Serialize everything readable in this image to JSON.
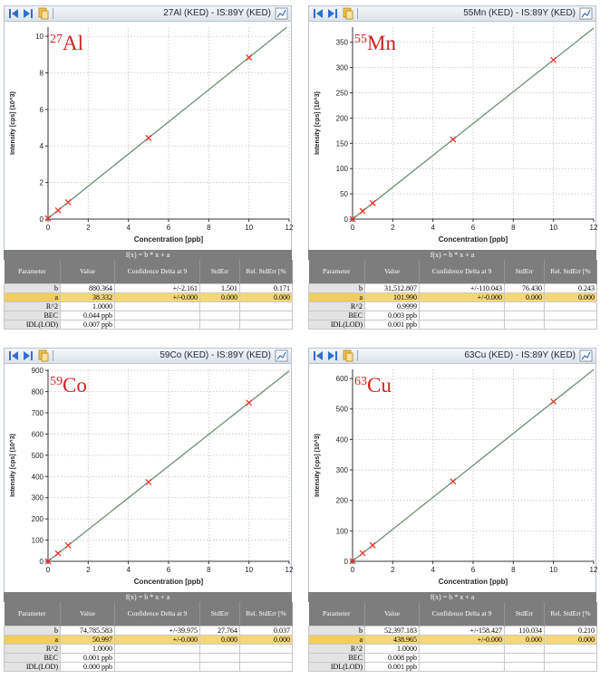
{
  "panels": [
    {
      "window_title": "27Al (KED) - IS:89Y (KED)",
      "isotope": {
        "mass": "27",
        "symbol": "Al"
      },
      "formula": "f(x) = b * x + a",
      "columns": [
        "Parameter",
        "Value",
        "Confidence Delta at 9",
        "StdErr",
        "Rel. StdErr [%"
      ],
      "rows": [
        {
          "param": "b",
          "value": "880.364",
          "conf": "+/-2.161",
          "stderr": "1.501",
          "rel": "0.171"
        },
        {
          "param": "a",
          "value": "38.332",
          "conf": "+/-0.000",
          "stderr": "0.000",
          "rel": "0.000"
        },
        {
          "param": "R^2",
          "value": "1.0000",
          "conf": "",
          "stderr": "",
          "rel": ""
        },
        {
          "param": "BEC",
          "value": "0.044 ppb",
          "conf": "",
          "stderr": "",
          "rel": ""
        },
        {
          "param": "IDL(LOD)",
          "value": "0.007 ppb",
          "conf": "",
          "stderr": "",
          "rel": ""
        }
      ],
      "chart_data": {
        "type": "scatter",
        "xlabel": "Concentration [ppb]",
        "ylabel": "Intensity [cps] (10^3)",
        "xlim": [
          0,
          12
        ],
        "ylim": [
          0,
          10.5
        ],
        "xticks": [
          0,
          2,
          4,
          6,
          8,
          10,
          12
        ],
        "yticks": [
          0,
          2,
          4,
          6,
          8,
          10
        ],
        "grid": true,
        "points": {
          "x": [
            0,
            0.5,
            1,
            5,
            10
          ],
          "y": [
            0.04,
            0.48,
            0.92,
            4.44,
            8.84
          ]
        },
        "fit": {
          "slope": 0.88,
          "intercept": 0.04
        }
      }
    },
    {
      "window_title": "55Mn (KED) - IS:89Y (KED)",
      "isotope": {
        "mass": "55",
        "symbol": "Mn"
      },
      "formula": "f(x) = b * x + a",
      "columns": [
        "Parameter",
        "Value",
        "Confidence Delta at 9",
        "StdErr",
        "Rel. StdErr [%"
      ],
      "rows": [
        {
          "param": "b",
          "value": "31,512.807",
          "conf": "+/-110.043",
          "stderr": "76.430",
          "rel": "0.243"
        },
        {
          "param": "a",
          "value": "101.990",
          "conf": "+/-0.000",
          "stderr": "0.000",
          "rel": "0.000"
        },
        {
          "param": "R^2",
          "value": "0.9999",
          "conf": "",
          "stderr": "",
          "rel": ""
        },
        {
          "param": "BEC",
          "value": "0.003 ppb",
          "conf": "",
          "stderr": "",
          "rel": ""
        },
        {
          "param": "IDL(LOD)",
          "value": "0.001 ppb",
          "conf": "",
          "stderr": "",
          "rel": ""
        }
      ],
      "chart_data": {
        "type": "scatter",
        "xlabel": "Concentration [ppb]",
        "ylabel": "Intensity [cps] (10^3)",
        "xlim": [
          0,
          12
        ],
        "ylim": [
          0,
          380
        ],
        "xticks": [
          0,
          2,
          4,
          6,
          8,
          10,
          12
        ],
        "yticks": [
          0,
          50,
          100,
          150,
          200,
          250,
          300,
          350
        ],
        "grid": true,
        "points": {
          "x": [
            0,
            0.5,
            1,
            5,
            10
          ],
          "y": [
            0.1,
            15.9,
            31.6,
            157.7,
            315.2
          ]
        },
        "fit": {
          "slope": 31.51,
          "intercept": 0.1
        }
      }
    },
    {
      "window_title": "59Co (KED) - IS:89Y (KED)",
      "isotope": {
        "mass": "59",
        "symbol": "Co"
      },
      "formula": "f(x) = b * x + a",
      "columns": [
        "Parameter",
        "Value",
        "Confidence Delta at 9",
        "StdErr",
        "Rel. StdErr [%"
      ],
      "rows": [
        {
          "param": "b",
          "value": "74,785.583",
          "conf": "+/-39.975",
          "stderr": "27.764",
          "rel": "0.037"
        },
        {
          "param": "a",
          "value": "50.997",
          "conf": "+/-0.000",
          "stderr": "0.000",
          "rel": "0.000"
        },
        {
          "param": "R^2",
          "value": "1.0000",
          "conf": "",
          "stderr": "",
          "rel": ""
        },
        {
          "param": "BEC",
          "value": "0.001 ppb",
          "conf": "",
          "stderr": "",
          "rel": ""
        },
        {
          "param": "IDL(LOD)",
          "value": "0.000 ppb",
          "conf": "",
          "stderr": "",
          "rel": ""
        }
      ],
      "chart_data": {
        "type": "scatter",
        "xlabel": "Concentration [ppb]",
        "ylabel": "Intensity [cps] (10^3)",
        "xlim": [
          0,
          12
        ],
        "ylim": [
          0,
          905
        ],
        "xticks": [
          0,
          2,
          4,
          6,
          8,
          10,
          12
        ],
        "yticks": [
          0,
          100,
          200,
          300,
          400,
          500,
          600,
          700,
          800,
          900
        ],
        "grid": true,
        "points": {
          "x": [
            0,
            0.5,
            1,
            5,
            10
          ],
          "y": [
            0.05,
            37.4,
            74.8,
            373.9,
            747.9
          ]
        },
        "fit": {
          "slope": 74.79,
          "intercept": 0.05
        }
      }
    },
    {
      "window_title": "63Cu (KED) - IS:89Y (KED)",
      "isotope": {
        "mass": "63",
        "symbol": "Cu"
      },
      "formula": "f(x) = b * x + a",
      "columns": [
        "Parameter",
        "Value",
        "Confidence Delta at 9",
        "StdErr",
        "Rel. StdErr [%"
      ],
      "rows": [
        {
          "param": "b",
          "value": "52,397.183",
          "conf": "+/-158.427",
          "stderr": "110.034",
          "rel": "0.210"
        },
        {
          "param": "a",
          "value": "438.965",
          "conf": "+/-0.000",
          "stderr": "0.000",
          "rel": "0.000"
        },
        {
          "param": "R^2",
          "value": "1.0000",
          "conf": "",
          "stderr": "",
          "rel": ""
        },
        {
          "param": "BEC",
          "value": "0.008 ppb",
          "conf": "",
          "stderr": "",
          "rel": ""
        },
        {
          "param": "IDL(LOD)",
          "value": "0.001 ppb",
          "conf": "",
          "stderr": "",
          "rel": ""
        }
      ],
      "chart_data": {
        "type": "scatter",
        "xlabel": "Concentration [ppb]",
        "ylabel": "Intensity [cps] (10^3)",
        "xlim": [
          0,
          12
        ],
        "ylim": [
          0,
          630
        ],
        "xticks": [
          0,
          2,
          4,
          6,
          8,
          10,
          12
        ],
        "yticks": [
          0,
          100,
          200,
          300,
          400,
          500,
          600
        ],
        "grid": true,
        "points": {
          "x": [
            0,
            0.5,
            1,
            5,
            10
          ],
          "y": [
            0.44,
            26.6,
            52.8,
            262.4,
            524.4
          ]
        },
        "fit": {
          "slope": 52.4,
          "intercept": 0.44
        }
      }
    }
  ]
}
